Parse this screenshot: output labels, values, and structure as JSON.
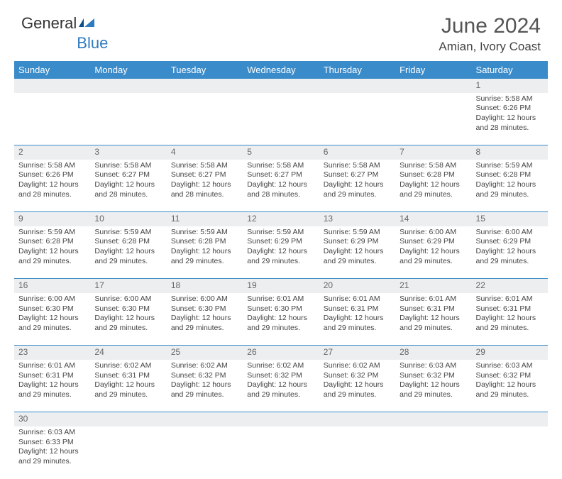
{
  "logo": {
    "textA": "General",
    "textB": "Blue"
  },
  "title": "June 2024",
  "location": "Amian, Ivory Coast",
  "colors": {
    "headerBg": "#3a8bc9",
    "headerText": "#ffffff",
    "dayBg": "#eceef0",
    "border": "#3a8bc9"
  },
  "weekdays": [
    "Sunday",
    "Monday",
    "Tuesday",
    "Wednesday",
    "Thursday",
    "Friday",
    "Saturday"
  ],
  "weeks": [
    [
      null,
      null,
      null,
      null,
      null,
      null,
      {
        "n": "1",
        "rise": "5:58 AM",
        "set": "6:26 PM",
        "dl": "12 hours and 28 minutes."
      }
    ],
    [
      {
        "n": "2",
        "rise": "5:58 AM",
        "set": "6:26 PM",
        "dl": "12 hours and 28 minutes."
      },
      {
        "n": "3",
        "rise": "5:58 AM",
        "set": "6:27 PM",
        "dl": "12 hours and 28 minutes."
      },
      {
        "n": "4",
        "rise": "5:58 AM",
        "set": "6:27 PM",
        "dl": "12 hours and 28 minutes."
      },
      {
        "n": "5",
        "rise": "5:58 AM",
        "set": "6:27 PM",
        "dl": "12 hours and 28 minutes."
      },
      {
        "n": "6",
        "rise": "5:58 AM",
        "set": "6:27 PM",
        "dl": "12 hours and 29 minutes."
      },
      {
        "n": "7",
        "rise": "5:58 AM",
        "set": "6:28 PM",
        "dl": "12 hours and 29 minutes."
      },
      {
        "n": "8",
        "rise": "5:59 AM",
        "set": "6:28 PM",
        "dl": "12 hours and 29 minutes."
      }
    ],
    [
      {
        "n": "9",
        "rise": "5:59 AM",
        "set": "6:28 PM",
        "dl": "12 hours and 29 minutes."
      },
      {
        "n": "10",
        "rise": "5:59 AM",
        "set": "6:28 PM",
        "dl": "12 hours and 29 minutes."
      },
      {
        "n": "11",
        "rise": "5:59 AM",
        "set": "6:28 PM",
        "dl": "12 hours and 29 minutes."
      },
      {
        "n": "12",
        "rise": "5:59 AM",
        "set": "6:29 PM",
        "dl": "12 hours and 29 minutes."
      },
      {
        "n": "13",
        "rise": "5:59 AM",
        "set": "6:29 PM",
        "dl": "12 hours and 29 minutes."
      },
      {
        "n": "14",
        "rise": "6:00 AM",
        "set": "6:29 PM",
        "dl": "12 hours and 29 minutes."
      },
      {
        "n": "15",
        "rise": "6:00 AM",
        "set": "6:29 PM",
        "dl": "12 hours and 29 minutes."
      }
    ],
    [
      {
        "n": "16",
        "rise": "6:00 AM",
        "set": "6:30 PM",
        "dl": "12 hours and 29 minutes."
      },
      {
        "n": "17",
        "rise": "6:00 AM",
        "set": "6:30 PM",
        "dl": "12 hours and 29 minutes."
      },
      {
        "n": "18",
        "rise": "6:00 AM",
        "set": "6:30 PM",
        "dl": "12 hours and 29 minutes."
      },
      {
        "n": "19",
        "rise": "6:01 AM",
        "set": "6:30 PM",
        "dl": "12 hours and 29 minutes."
      },
      {
        "n": "20",
        "rise": "6:01 AM",
        "set": "6:31 PM",
        "dl": "12 hours and 29 minutes."
      },
      {
        "n": "21",
        "rise": "6:01 AM",
        "set": "6:31 PM",
        "dl": "12 hours and 29 minutes."
      },
      {
        "n": "22",
        "rise": "6:01 AM",
        "set": "6:31 PM",
        "dl": "12 hours and 29 minutes."
      }
    ],
    [
      {
        "n": "23",
        "rise": "6:01 AM",
        "set": "6:31 PM",
        "dl": "12 hours and 29 minutes."
      },
      {
        "n": "24",
        "rise": "6:02 AM",
        "set": "6:31 PM",
        "dl": "12 hours and 29 minutes."
      },
      {
        "n": "25",
        "rise": "6:02 AM",
        "set": "6:32 PM",
        "dl": "12 hours and 29 minutes."
      },
      {
        "n": "26",
        "rise": "6:02 AM",
        "set": "6:32 PM",
        "dl": "12 hours and 29 minutes."
      },
      {
        "n": "27",
        "rise": "6:02 AM",
        "set": "6:32 PM",
        "dl": "12 hours and 29 minutes."
      },
      {
        "n": "28",
        "rise": "6:03 AM",
        "set": "6:32 PM",
        "dl": "12 hours and 29 minutes."
      },
      {
        "n": "29",
        "rise": "6:03 AM",
        "set": "6:32 PM",
        "dl": "12 hours and 29 minutes."
      }
    ],
    [
      {
        "n": "30",
        "rise": "6:03 AM",
        "set": "6:33 PM",
        "dl": "12 hours and 29 minutes."
      },
      null,
      null,
      null,
      null,
      null,
      null
    ]
  ],
  "labels": {
    "sunrise": "Sunrise: ",
    "sunset": "Sunset: ",
    "daylight": "Daylight: "
  }
}
